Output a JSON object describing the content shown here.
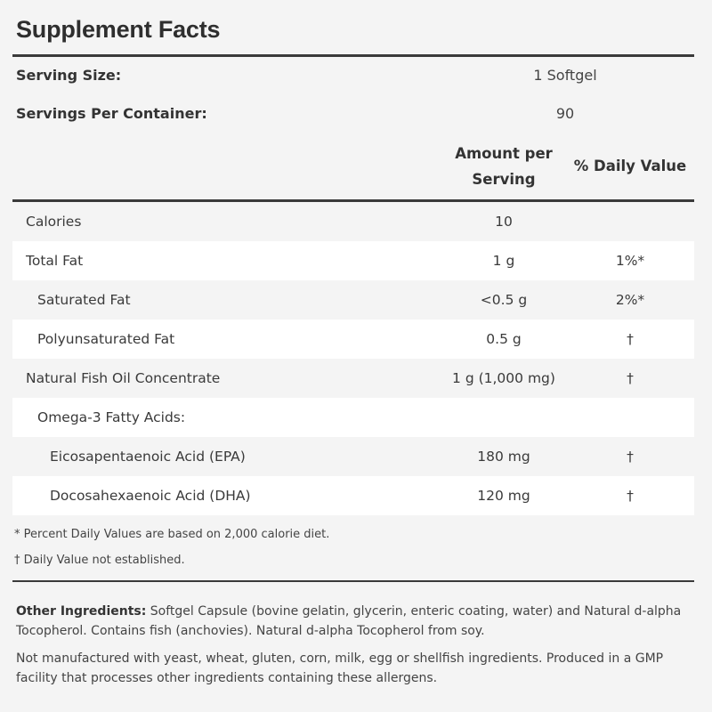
{
  "title": "Supplement Facts",
  "serving_size": {
    "label": "Serving Size:",
    "value": "1 Softgel"
  },
  "servings_per_container": {
    "label": "Servings Per Container:",
    "value": "90"
  },
  "columns": {
    "amount_line1": "Amount per",
    "amount_line2": "Serving",
    "daily_value": "% Daily Value"
  },
  "rows": [
    {
      "name": "Calories",
      "amount": "10",
      "dv": ""
    },
    {
      "name": "Total Fat",
      "amount": "1 g",
      "dv": "1%*"
    },
    {
      "name": "Saturated Fat",
      "amount": "<0.5 g",
      "dv": "2%*"
    },
    {
      "name": "Polyunsaturated Fat",
      "amount": "0.5 g",
      "dv": "†"
    },
    {
      "name": "Natural Fish Oil Concentrate",
      "amount": "1 g (1,000 mg)",
      "dv": "†"
    },
    {
      "name": "Omega-3 Fatty Acids:",
      "amount": "",
      "dv": ""
    },
    {
      "name": "Eicosapentaenoic Acid (EPA)",
      "amount": "180 mg",
      "dv": "†"
    },
    {
      "name": "Docosahexaenoic Acid (DHA)",
      "amount": "120 mg",
      "dv": "†"
    }
  ],
  "footnotes": {
    "percent": "* Percent Daily Values are based on 2,000 calorie diet.",
    "dagger": "† Daily Value not established."
  },
  "other_ingredients": {
    "label": "Other Ingredients:",
    "text": "Softgel Capsule (bovine gelatin, glycerin, enteric coating, water) and Natural d-alpha Tocopherol. Contains fish (anchovies).  Natural d-alpha Tocopherol from soy."
  },
  "allergen_statement": "Not manufactured with yeast, wheat, gluten, corn, milk, egg or shellfish ingredients. Produced in a GMP facility that processes other ingredients containing these allergens."
}
